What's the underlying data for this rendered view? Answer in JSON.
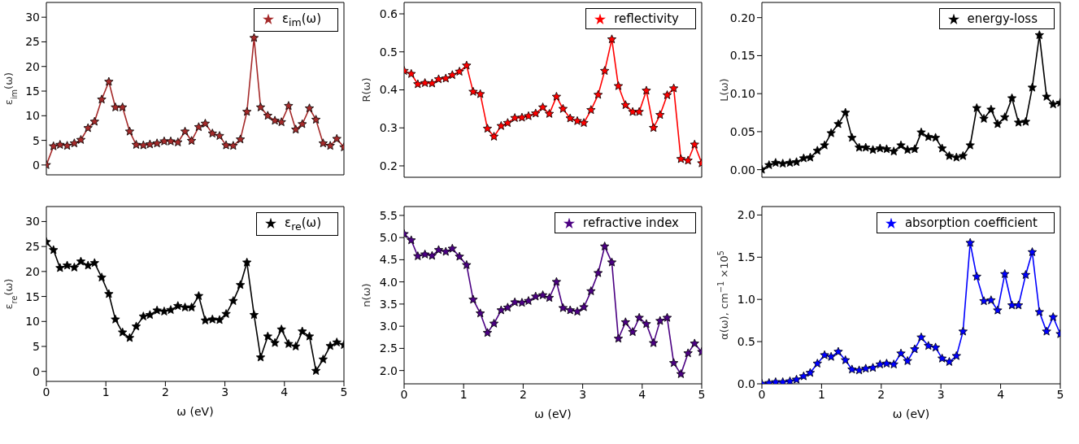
{
  "chart_data": [
    {
      "type": "line",
      "ylabel": "ε$_{im}$(ω)",
      "x": [
        0,
        0.12,
        0.23,
        0.35,
        0.47,
        0.58,
        0.7,
        0.81,
        0.93,
        1.05,
        1.16,
        1.28,
        1.4,
        1.51,
        1.63,
        1.74,
        1.86,
        1.98,
        2.09,
        2.21,
        2.33,
        2.44,
        2.56,
        2.67,
        2.79,
        2.91,
        3.02,
        3.14,
        3.26,
        3.37,
        3.49,
        3.6,
        3.72,
        3.84,
        3.95,
        4.07,
        4.19,
        4.3,
        4.42,
        4.53,
        4.65,
        4.77,
        4.88,
        5.0
      ],
      "xlim": [
        0,
        5
      ],
      "xticks": [
        0,
        1,
        2,
        3,
        4,
        5
      ],
      "ylim": [
        -2,
        33
      ],
      "yticks": [
        0,
        5,
        10,
        15,
        20,
        25,
        30
      ],
      "tick_labels": "y",
      "legend": "top right",
      "marker": "star",
      "line_style": "solid",
      "grid": false,
      "series": [
        {
          "name": "ε$_{im}$(ω)",
          "color": "#a52a2a",
          "values": [
            0,
            3.8,
            4.1,
            3.9,
            4.4,
            5.1,
            7.5,
            8.8,
            13.3,
            16.9,
            11.7,
            11.7,
            6.8,
            4.1,
            4.0,
            4.2,
            4.4,
            4.8,
            4.8,
            4.6,
            6.8,
            4.9,
            7.7,
            8.4,
            6.4,
            5.9,
            4.0,
            3.9,
            5.2,
            10.8,
            25.8,
            11.7,
            10.0,
            9.0,
            8.7,
            12.0,
            7.2,
            8.3,
            11.5,
            9.2,
            4.4,
            3.9,
            5.3,
            3.6
          ]
        }
      ]
    },
    {
      "type": "line",
      "ylabel": "R(ω)",
      "x": [
        0,
        0.12,
        0.23,
        0.35,
        0.47,
        0.58,
        0.7,
        0.81,
        0.93,
        1.05,
        1.16,
        1.28,
        1.4,
        1.51,
        1.63,
        1.74,
        1.86,
        1.98,
        2.09,
        2.21,
        2.33,
        2.44,
        2.56,
        2.67,
        2.79,
        2.91,
        3.02,
        3.14,
        3.26,
        3.37,
        3.49,
        3.6,
        3.72,
        3.84,
        3.95,
        4.07,
        4.19,
        4.3,
        4.42,
        4.53,
        4.65,
        4.77,
        4.88,
        5.0
      ],
      "xlim": [
        0,
        5
      ],
      "xticks": [
        0,
        1,
        2,
        3,
        4,
        5
      ],
      "ylim": [
        0.17,
        0.63
      ],
      "yticks": [
        0.2,
        0.3,
        0.4,
        0.5,
        0.6
      ],
      "tick_labels": "y",
      "legend": "top right",
      "marker": "star",
      "line_style": "solid",
      "grid": false,
      "series": [
        {
          "name": "reflectivity",
          "color": "#ff0000",
          "values": [
            0.45,
            0.442,
            0.415,
            0.418,
            0.417,
            0.428,
            0.43,
            0.439,
            0.448,
            0.464,
            0.395,
            0.389,
            0.298,
            0.277,
            0.305,
            0.313,
            0.326,
            0.327,
            0.331,
            0.338,
            0.354,
            0.337,
            0.382,
            0.35,
            0.325,
            0.318,
            0.313,
            0.347,
            0.387,
            0.45,
            0.533,
            0.41,
            0.36,
            0.342,
            0.342,
            0.398,
            0.3,
            0.334,
            0.386,
            0.404,
            0.218,
            0.214,
            0.256,
            0.207
          ]
        }
      ]
    },
    {
      "type": "line",
      "ylabel": "L(ω)",
      "x": [
        0,
        0.12,
        0.23,
        0.35,
        0.47,
        0.58,
        0.7,
        0.81,
        0.93,
        1.05,
        1.16,
        1.28,
        1.4,
        1.51,
        1.63,
        1.74,
        1.86,
        1.98,
        2.09,
        2.21,
        2.33,
        2.44,
        2.56,
        2.67,
        2.79,
        2.91,
        3.02,
        3.14,
        3.26,
        3.37,
        3.49,
        3.6,
        3.72,
        3.84,
        3.95,
        4.07,
        4.19,
        4.3,
        4.42,
        4.53,
        4.65,
        4.77,
        4.88,
        5.0
      ],
      "xlim": [
        0,
        5
      ],
      "xticks": [
        0,
        1,
        2,
        3,
        4,
        5
      ],
      "ylim": [
        -0.01,
        0.22
      ],
      "yticks": [
        {
          "value": 0,
          "label": "0.00"
        },
        0.05,
        {
          "value": 0.1,
          "label": "0.10"
        },
        0.15,
        {
          "value": 0.2,
          "label": "0.20"
        }
      ],
      "tick_labels": "y",
      "legend": "top right",
      "marker": "star",
      "line_style": "solid",
      "grid": false,
      "series": [
        {
          "name": "energy-loss",
          "color": "#000000",
          "values": [
            0,
            0.006,
            0.009,
            0.008,
            0.009,
            0.01,
            0.015,
            0.016,
            0.025,
            0.032,
            0.048,
            0.06,
            0.075,
            0.042,
            0.029,
            0.029,
            0.026,
            0.028,
            0.027,
            0.024,
            0.032,
            0.026,
            0.027,
            0.049,
            0.043,
            0.042,
            0.028,
            0.018,
            0.016,
            0.018,
            0.032,
            0.081,
            0.067,
            0.079,
            0.06,
            0.069,
            0.094,
            0.062,
            0.063,
            0.108,
            0.177,
            0.096,
            0.086,
            0.088
          ]
        }
      ]
    },
    {
      "type": "line",
      "xlabel": "ω (eV)",
      "ylabel": "ε$_{re}$(ω)",
      "x": [
        0,
        0.12,
        0.23,
        0.35,
        0.47,
        0.58,
        0.7,
        0.81,
        0.93,
        1.05,
        1.16,
        1.28,
        1.4,
        1.51,
        1.63,
        1.74,
        1.86,
        1.98,
        2.09,
        2.21,
        2.33,
        2.44,
        2.56,
        2.67,
        2.79,
        2.91,
        3.02,
        3.14,
        3.26,
        3.37,
        3.49,
        3.6,
        3.72,
        3.84,
        3.95,
        4.07,
        4.19,
        4.3,
        4.42,
        4.53,
        4.65,
        4.77,
        4.88,
        5.0
      ],
      "xlim": [
        0,
        5
      ],
      "xticks": [
        0,
        1,
        2,
        3,
        4,
        5
      ],
      "ylim": [
        -2,
        33
      ],
      "yticks": [
        0,
        5,
        10,
        15,
        20,
        25,
        30
      ],
      "legend": "top right",
      "marker": "star",
      "line_style": "solid",
      "grid": false,
      "series": [
        {
          "name": "ε$_{re}$(ω)",
          "color": "#000000",
          "values": [
            25.9,
            24.3,
            20.7,
            21.2,
            20.8,
            22.0,
            21.2,
            21.7,
            18.8,
            15.5,
            10.4,
            7.8,
            6.7,
            9.0,
            11.0,
            11.3,
            12.2,
            12.0,
            12.3,
            13.1,
            12.8,
            12.8,
            15.1,
            10.2,
            10.4,
            10.3,
            11.5,
            14.1,
            17.3,
            21.8,
            11.3,
            2.8,
            7.0,
            5.7,
            8.4,
            5.5,
            5.0,
            8.0,
            7.0,
            0.1,
            2.4,
            5.1,
            5.8,
            5.3
          ]
        }
      ]
    },
    {
      "type": "line",
      "xlabel": "ω (eV)",
      "ylabel": "n(ω)",
      "x": [
        0,
        0.12,
        0.23,
        0.35,
        0.47,
        0.58,
        0.7,
        0.81,
        0.93,
        1.05,
        1.16,
        1.28,
        1.4,
        1.51,
        1.63,
        1.74,
        1.86,
        1.98,
        2.09,
        2.21,
        2.33,
        2.44,
        2.56,
        2.67,
        2.79,
        2.91,
        3.02,
        3.14,
        3.26,
        3.37,
        3.49,
        3.6,
        3.72,
        3.84,
        3.95,
        4.07,
        4.19,
        4.3,
        4.42,
        4.53,
        4.65,
        4.77,
        4.88,
        5.0
      ],
      "xlim": [
        0,
        5
      ],
      "xticks": [
        0,
        1,
        2,
        3,
        4,
        5
      ],
      "ylim": [
        1.7,
        5.7
      ],
      "yticks": [
        {
          "value": 2,
          "label": "2.0"
        },
        2.5,
        {
          "value": 3,
          "label": "3.0"
        },
        3.5,
        {
          "value": 4,
          "label": "4.0"
        },
        4.5,
        {
          "value": 5,
          "label": "5.0"
        },
        5.5
      ],
      "legend": "top right",
      "marker": "star",
      "line_style": "solid",
      "grid": false,
      "series": [
        {
          "name": "refractive index",
          "color": "#4b0082",
          "values": [
            5.08,
            4.94,
            4.58,
            4.62,
            4.59,
            4.72,
            4.68,
            4.75,
            4.57,
            4.38,
            3.6,
            3.29,
            2.85,
            3.06,
            3.36,
            3.42,
            3.54,
            3.53,
            3.57,
            3.67,
            3.7,
            3.64,
            4.0,
            3.41,
            3.36,
            3.33,
            3.43,
            3.79,
            4.2,
            4.8,
            4.44,
            2.72,
            3.09,
            2.87,
            3.19,
            3.05,
            2.62,
            3.12,
            3.19,
            2.17,
            1.92,
            2.39,
            2.61,
            2.42
          ]
        }
      ]
    },
    {
      "type": "line",
      "xlabel": "ω (eV)",
      "ylabel": "α(ω), cm$^{−1}$ ×10$^{5}$",
      "x": [
        0,
        0.12,
        0.23,
        0.35,
        0.47,
        0.58,
        0.7,
        0.81,
        0.93,
        1.05,
        1.16,
        1.28,
        1.4,
        1.51,
        1.63,
        1.74,
        1.86,
        1.98,
        2.09,
        2.21,
        2.33,
        2.44,
        2.56,
        2.67,
        2.79,
        2.91,
        3.02,
        3.14,
        3.26,
        3.37,
        3.49,
        3.6,
        3.72,
        3.84,
        3.95,
        4.07,
        4.19,
        4.3,
        4.42,
        4.53,
        4.65,
        4.77,
        4.88,
        5.0
      ],
      "xlim": [
        0,
        5
      ],
      "xticks": [
        0,
        1,
        2,
        3,
        4,
        5
      ],
      "ylim": [
        0,
        2.1
      ],
      "yticks": [
        {
          "value": 0,
          "label": "0.0"
        },
        0.5,
        {
          "value": 1,
          "label": "1.0"
        },
        1.5,
        {
          "value": 2,
          "label": "2.0"
        }
      ],
      "legend": "top right",
      "marker": "star",
      "line_style": "solid",
      "grid": false,
      "series": [
        {
          "name": "absorption coefficient",
          "color": "#0000ff",
          "values": [
            0,
            0.01,
            0.02,
            0.02,
            0.03,
            0.05,
            0.09,
            0.13,
            0.24,
            0.34,
            0.32,
            0.38,
            0.28,
            0.17,
            0.16,
            0.18,
            0.19,
            0.23,
            0.24,
            0.23,
            0.36,
            0.27,
            0.41,
            0.55,
            0.45,
            0.43,
            0.3,
            0.26,
            0.33,
            0.62,
            1.67,
            1.27,
            0.98,
            0.99,
            0.87,
            1.3,
            0.93,
            0.93,
            1.29,
            1.56,
            0.85,
            0.62,
            0.79,
            0.59
          ]
        }
      ]
    }
  ]
}
